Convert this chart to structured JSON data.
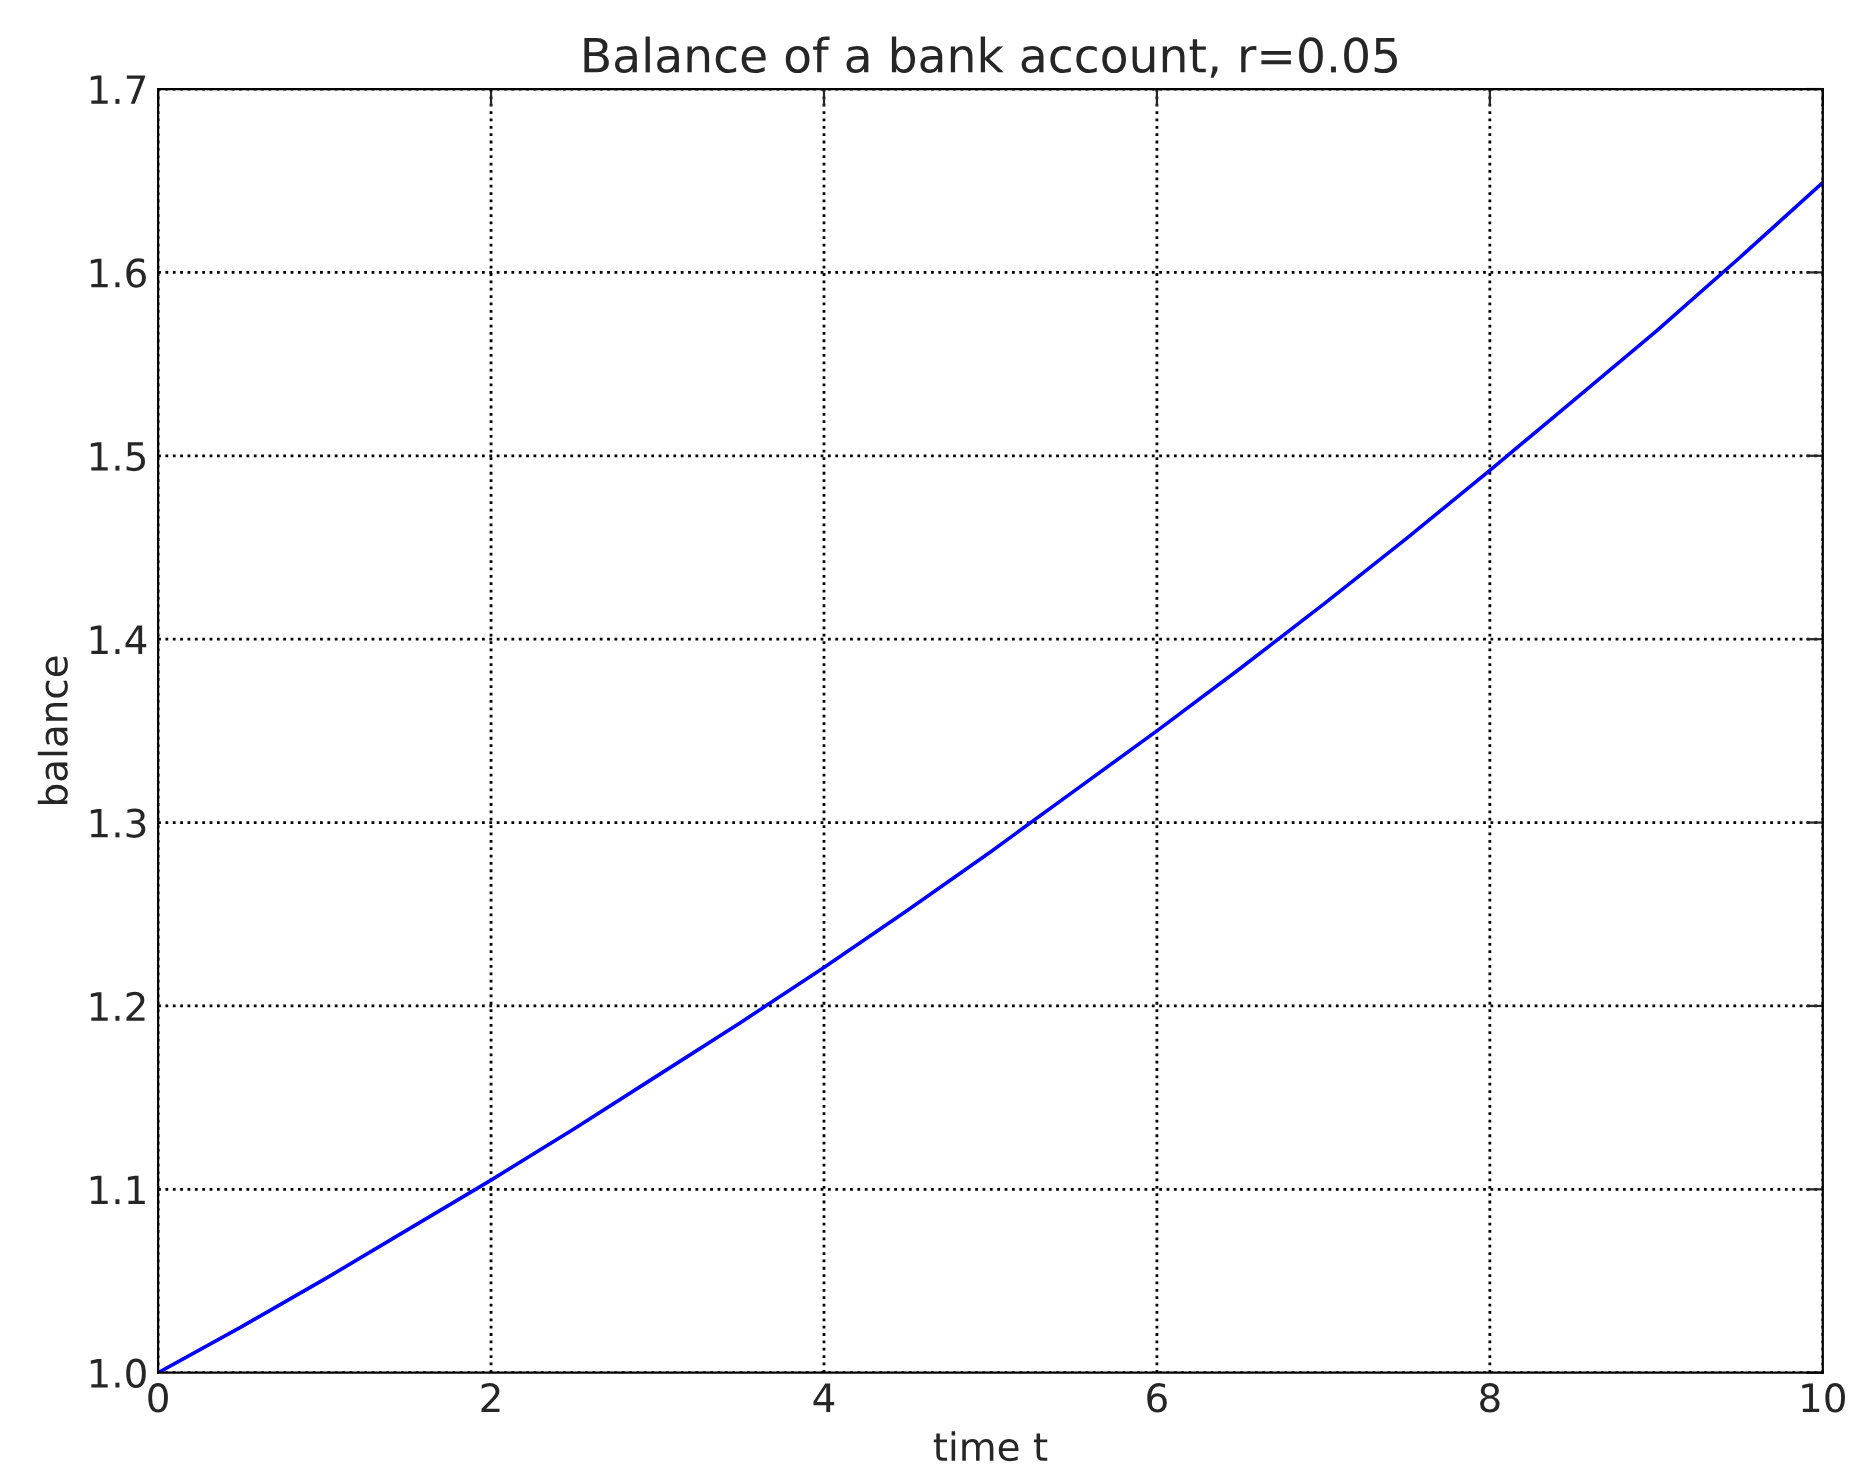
{
  "chart_data": {
    "type": "line",
    "title": "Balance of a bank account, r=0.05",
    "xlabel": "time t",
    "ylabel": "balance",
    "x": [
      0,
      0.5,
      1,
      1.5,
      2,
      2.5,
      3,
      3.5,
      4,
      4.5,
      5,
      5.5,
      6,
      6.5,
      7,
      7.5,
      8,
      8.5,
      9,
      9.5,
      10
    ],
    "series": [
      {
        "color": "#0000ff",
        "values": [
          1.0,
          1.025,
          1.051,
          1.078,
          1.105,
          1.133,
          1.162,
          1.191,
          1.221,
          1.252,
          1.284,
          1.317,
          1.35,
          1.384,
          1.419,
          1.455,
          1.492,
          1.53,
          1.568,
          1.608,
          1.649
        ]
      }
    ],
    "xlim": [
      0,
      10
    ],
    "xticks": [
      0,
      2,
      4,
      6,
      8,
      10
    ],
    "ylim": [
      1.0,
      1.7
    ],
    "yticks": [
      {
        "value": 1.0,
        "label": "1.0"
      },
      1.1,
      1.2,
      1.3,
      1.4,
      1.5,
      1.6,
      1.7
    ],
    "grid": true,
    "line_style": "solid",
    "marker": "none"
  }
}
